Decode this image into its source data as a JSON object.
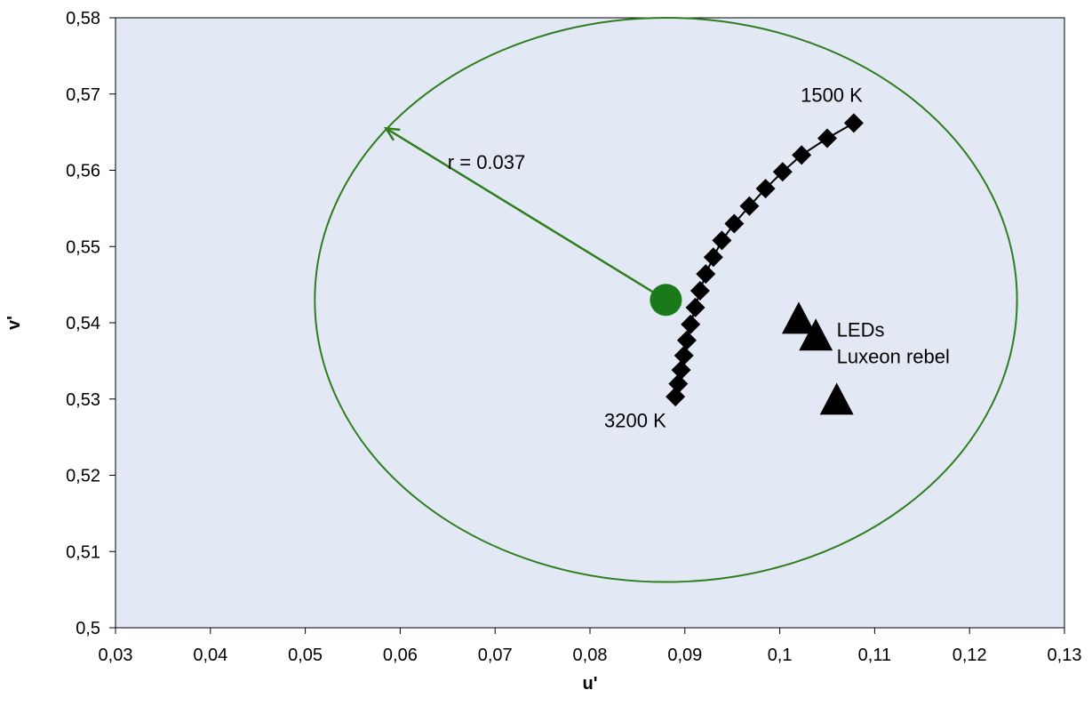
{
  "chart_data": {
    "type": "scatter",
    "title": "",
    "xlabel": "u'",
    "ylabel": "v'",
    "xlim": [
      0.03,
      0.13
    ],
    "ylim": [
      0.5,
      0.58
    ],
    "x_ticks": [
      "0,03",
      "0,04",
      "0,05",
      "0,06",
      "0,07",
      "0,08",
      "0,09",
      "0,1",
      "0,11",
      "0,12",
      "0,13"
    ],
    "y_ticks": [
      "0,5",
      "0,51",
      "0,52",
      "0,53",
      "0,54",
      "0,55",
      "0,56",
      "0,57",
      "0,58"
    ],
    "grid": false,
    "plot_background": "#e3e9f4",
    "series": [
      {
        "marker": "diamond",
        "color": "#000000",
        "line": true,
        "points": [
          [
            0.089,
            0.5303
          ],
          [
            0.0893,
            0.532
          ],
          [
            0.0896,
            0.5338
          ],
          [
            0.0899,
            0.5357
          ],
          [
            0.0902,
            0.5377
          ],
          [
            0.0906,
            0.5398
          ],
          [
            0.0911,
            0.542
          ],
          [
            0.0916,
            0.5442
          ],
          [
            0.0922,
            0.5464
          ],
          [
            0.093,
            0.5486
          ],
          [
            0.0939,
            0.5508
          ],
          [
            0.0952,
            0.553
          ],
          [
            0.0968,
            0.5553
          ],
          [
            0.0985,
            0.5576
          ],
          [
            0.1003,
            0.5598
          ],
          [
            0.1023,
            0.562
          ],
          [
            0.105,
            0.5642
          ],
          [
            0.1078,
            0.5662
          ]
        ]
      },
      {
        "marker": "triangle",
        "color": "#000000",
        "line": false,
        "points": [
          [
            0.102,
            0.5403
          ],
          [
            0.1038,
            0.5381
          ],
          [
            0.106,
            0.5297
          ]
        ]
      },
      {
        "marker": "circle",
        "color": "#1a7a1a",
        "line": false,
        "points": [
          [
            0.088,
            0.543
          ]
        ]
      }
    ],
    "circle": {
      "center": [
        0.088,
        0.543
      ],
      "r": 0.037,
      "color": "#2e7d1f"
    },
    "arrow": {
      "from": [
        0.088,
        0.543
      ],
      "to": [
        0.0585,
        0.5655
      ],
      "color": "#2e7d1f"
    },
    "annotations": [
      {
        "text": "1500 K",
        "x": 0.1022,
        "y": 0.569
      },
      {
        "text": "3200 K",
        "x": 0.0815,
        "y": 0.5263
      },
      {
        "text": "r = 0.037",
        "x": 0.065,
        "y": 0.5602
      },
      {
        "text": "LEDs",
        "x": 0.106,
        "y": 0.5382
      },
      {
        "text": "Luxeon rebel",
        "x": 0.106,
        "y": 0.5347
      }
    ]
  }
}
